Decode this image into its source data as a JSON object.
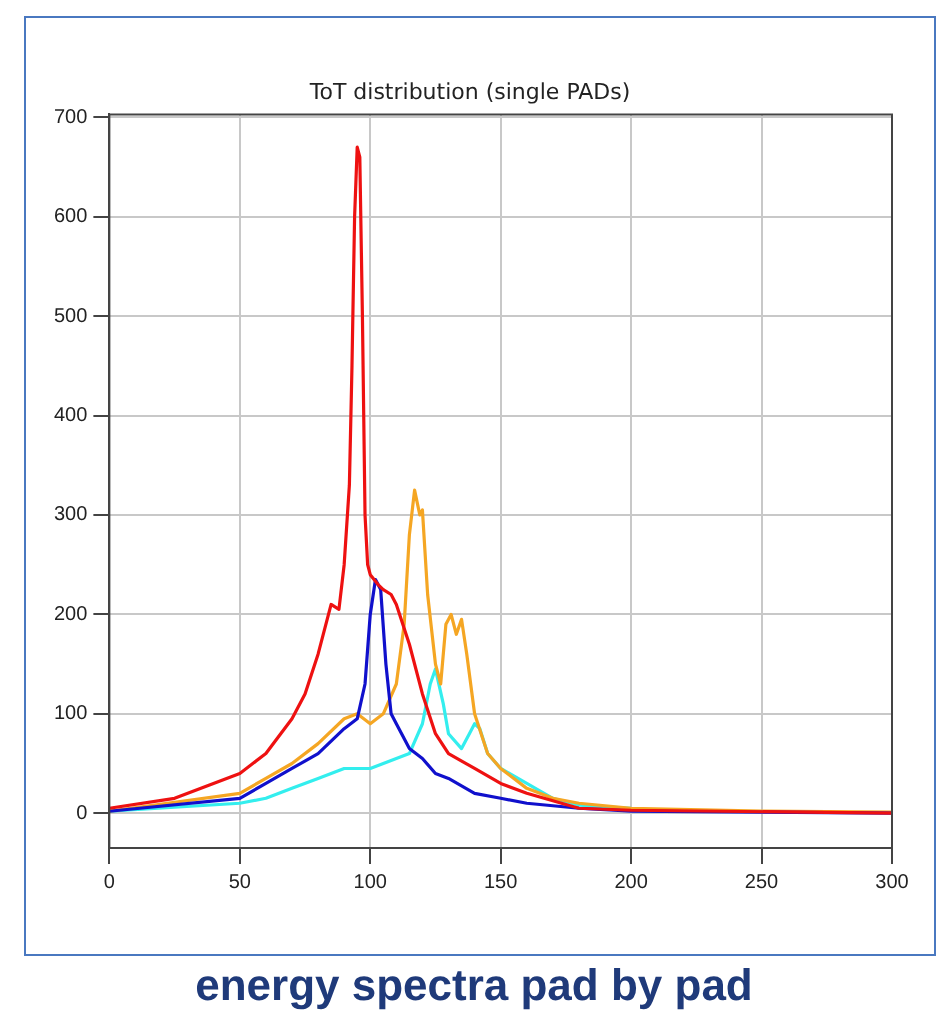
{
  "chart_data": {
    "type": "line",
    "title": "ToT distribution (single PADs)",
    "annotations": [
      "energy spectra pad by pad"
    ],
    "xlim": [
      0,
      300
    ],
    "xticks": [
      0,
      50,
      100,
      150,
      200,
      250,
      300
    ],
    "ylim": [
      -35,
      703
    ],
    "yticks": [
      0,
      100,
      200,
      300,
      400,
      500,
      600,
      700
    ],
    "grid": true,
    "legend": false,
    "marker": "none",
    "line_style": "solid",
    "series": [
      {
        "color": "#ee1111",
        "x": [
          0,
          25,
          50,
          60,
          70,
          75,
          80,
          85,
          88,
          90,
          92,
          93,
          94,
          95,
          96,
          97,
          98,
          99,
          100,
          103,
          105,
          108,
          110,
          115,
          120,
          125,
          130,
          140,
          150,
          160,
          180,
          200,
          300
        ],
        "values": [
          5,
          15,
          40,
          60,
          95,
          120,
          160,
          210,
          205,
          250,
          330,
          450,
          600,
          670,
          660,
          500,
          300,
          250,
          240,
          230,
          225,
          220,
          210,
          170,
          120,
          80,
          60,
          45,
          30,
          20,
          5,
          3,
          0
        ]
      },
      {
        "color": "#1010cc",
        "x": [
          0,
          50,
          60,
          70,
          80,
          90,
          95,
          98,
          100,
          102,
          104,
          106,
          108,
          110,
          115,
          120,
          125,
          130,
          140,
          150,
          160,
          180,
          200,
          300
        ],
        "values": [
          2,
          15,
          30,
          45,
          60,
          85,
          95,
          130,
          200,
          235,
          225,
          150,
          100,
          90,
          65,
          55,
          40,
          35,
          20,
          15,
          10,
          5,
          2,
          0
        ]
      },
      {
        "color": "#f5a623",
        "x": [
          0,
          50,
          60,
          70,
          80,
          90,
          95,
          100,
          105,
          110,
          113,
          115,
          117,
          119,
          120,
          122,
          125,
          127,
          129,
          131,
          133,
          135,
          137,
          140,
          145,
          150,
          160,
          170,
          180,
          200,
          250,
          300
        ],
        "values": [
          2,
          20,
          35,
          50,
          70,
          95,
          100,
          90,
          100,
          130,
          190,
          280,
          325,
          300,
          305,
          220,
          150,
          130,
          190,
          200,
          180,
          195,
          160,
          100,
          60,
          45,
          25,
          15,
          10,
          5,
          2,
          1
        ]
      },
      {
        "color": "#33eeee",
        "x": [
          0,
          50,
          60,
          70,
          80,
          90,
          100,
          110,
          115,
          120,
          123,
          125,
          128,
          130,
          135,
          138,
          140,
          142,
          145,
          150,
          160,
          170,
          180,
          200
        ],
        "values": [
          2,
          10,
          15,
          25,
          35,
          45,
          45,
          55,
          60,
          90,
          130,
          145,
          110,
          80,
          65,
          80,
          90,
          85,
          60,
          45,
          30,
          15,
          8,
          5
        ]
      }
    ]
  }
}
